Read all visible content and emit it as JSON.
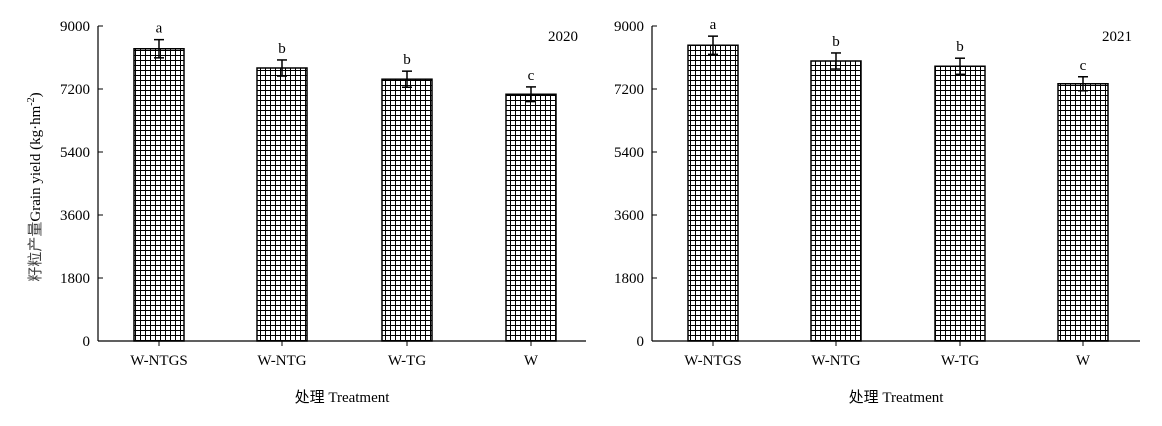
{
  "chart_data": [
    {
      "type": "bar",
      "title": "",
      "panel_label": "2020",
      "xlabel": "处理 Treatment",
      "ylabel_cn": "籽粒产量",
      "ylabel_en": "Grain yield (kg·hm",
      "ylabel_sup": "-2",
      "ylabel_end": ")",
      "ylim": [
        0,
        9000
      ],
      "yticks": [
        0,
        1800,
        3600,
        5400,
        7200,
        9000
      ],
      "categories": [
        "W-NTGS",
        "W-NTG",
        "W-TG",
        "W"
      ],
      "values": [
        8350,
        7800,
        7480,
        7050
      ],
      "errors": [
        260,
        230,
        230,
        210
      ],
      "significance": [
        "a",
        "b",
        "b",
        "c"
      ],
      "fill": "crosshatch",
      "color": "#000000"
    },
    {
      "type": "bar",
      "title": "",
      "panel_label": "2021",
      "xlabel": "处理 Treatment",
      "ylim": [
        0,
        9000
      ],
      "yticks": [
        0,
        1800,
        3600,
        5400,
        7200,
        9000
      ],
      "categories": [
        "W-NTGS",
        "W-NTG",
        "W-TG",
        "W"
      ],
      "values": [
        8450,
        8000,
        7850,
        7350
      ],
      "errors": [
        260,
        230,
        230,
        200
      ],
      "significance": [
        "a",
        "b",
        "b",
        "c"
      ],
      "fill": "crosshatch",
      "color": "#000000"
    }
  ]
}
